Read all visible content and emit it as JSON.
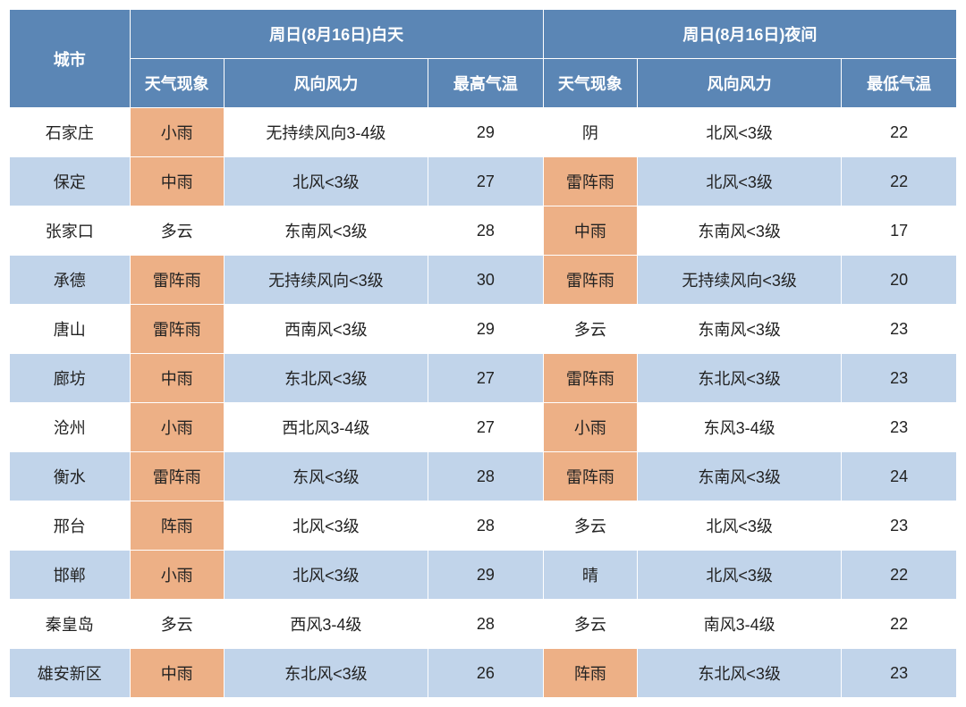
{
  "colors": {
    "header_bg": "#5b86b5",
    "header_fg": "#ffffff",
    "row_even_bg": "#ffffff",
    "row_odd_bg": "#c1d4ea",
    "highlight_bg": "#edb086",
    "border": "#ffffff",
    "text": "#222222"
  },
  "header": {
    "city": "城市",
    "day_group": "周日(8月16日)白天",
    "night_group": "周日(8月16日)夜间",
    "sub": {
      "wx": "天气现象",
      "wind": "风向风力",
      "high": "最高气温",
      "low": "最低气温"
    }
  },
  "rows": [
    {
      "city": "石家庄",
      "d_wx": "小雨",
      "d_wx_hl": true,
      "d_wind": "无持续风向3-4级",
      "d_temp": "29",
      "n_wx": "阴",
      "n_wx_hl": false,
      "n_wind": "北风<3级",
      "n_temp": "22"
    },
    {
      "city": "保定",
      "d_wx": "中雨",
      "d_wx_hl": true,
      "d_wind": "北风<3级",
      "d_temp": "27",
      "n_wx": "雷阵雨",
      "n_wx_hl": true,
      "n_wind": "北风<3级",
      "n_temp": "22"
    },
    {
      "city": "张家口",
      "d_wx": "多云",
      "d_wx_hl": false,
      "d_wind": "东南风<3级",
      "d_temp": "28",
      "n_wx": "中雨",
      "n_wx_hl": true,
      "n_wind": "东南风<3级",
      "n_temp": "17"
    },
    {
      "city": "承德",
      "d_wx": "雷阵雨",
      "d_wx_hl": true,
      "d_wind": "无持续风向<3级",
      "d_temp": "30",
      "n_wx": "雷阵雨",
      "n_wx_hl": true,
      "n_wind": "无持续风向<3级",
      "n_temp": "20"
    },
    {
      "city": "唐山",
      "d_wx": "雷阵雨",
      "d_wx_hl": true,
      "d_wind": "西南风<3级",
      "d_temp": "29",
      "n_wx": "多云",
      "n_wx_hl": false,
      "n_wind": "东南风<3级",
      "n_temp": "23"
    },
    {
      "city": "廊坊",
      "d_wx": "中雨",
      "d_wx_hl": true,
      "d_wind": "东北风<3级",
      "d_temp": "27",
      "n_wx": "雷阵雨",
      "n_wx_hl": true,
      "n_wind": "东北风<3级",
      "n_temp": "23"
    },
    {
      "city": "沧州",
      "d_wx": "小雨",
      "d_wx_hl": true,
      "d_wind": "西北风3-4级",
      "d_temp": "27",
      "n_wx": "小雨",
      "n_wx_hl": true,
      "n_wind": "东风3-4级",
      "n_temp": "23"
    },
    {
      "city": "衡水",
      "d_wx": "雷阵雨",
      "d_wx_hl": true,
      "d_wind": "东风<3级",
      "d_temp": "28",
      "n_wx": "雷阵雨",
      "n_wx_hl": true,
      "n_wind": "东南风<3级",
      "n_temp": "24"
    },
    {
      "city": "邢台",
      "d_wx": "阵雨",
      "d_wx_hl": true,
      "d_wind": "北风<3级",
      "d_temp": "28",
      "n_wx": "多云",
      "n_wx_hl": false,
      "n_wind": "北风<3级",
      "n_temp": "23"
    },
    {
      "city": "邯郸",
      "d_wx": "小雨",
      "d_wx_hl": true,
      "d_wind": "北风<3级",
      "d_temp": "29",
      "n_wx": "晴",
      "n_wx_hl": false,
      "n_wind": "北风<3级",
      "n_temp": "22"
    },
    {
      "city": "秦皇岛",
      "d_wx": "多云",
      "d_wx_hl": false,
      "d_wind": "西风3-4级",
      "d_temp": "28",
      "n_wx": "多云",
      "n_wx_hl": false,
      "n_wind": "南风3-4级",
      "n_temp": "22"
    },
    {
      "city": "雄安新区",
      "d_wx": "中雨",
      "d_wx_hl": true,
      "d_wind": "东北风<3级",
      "d_temp": "26",
      "n_wx": "阵雨",
      "n_wx_hl": true,
      "n_wind": "东北风<3级",
      "n_temp": "23"
    }
  ]
}
